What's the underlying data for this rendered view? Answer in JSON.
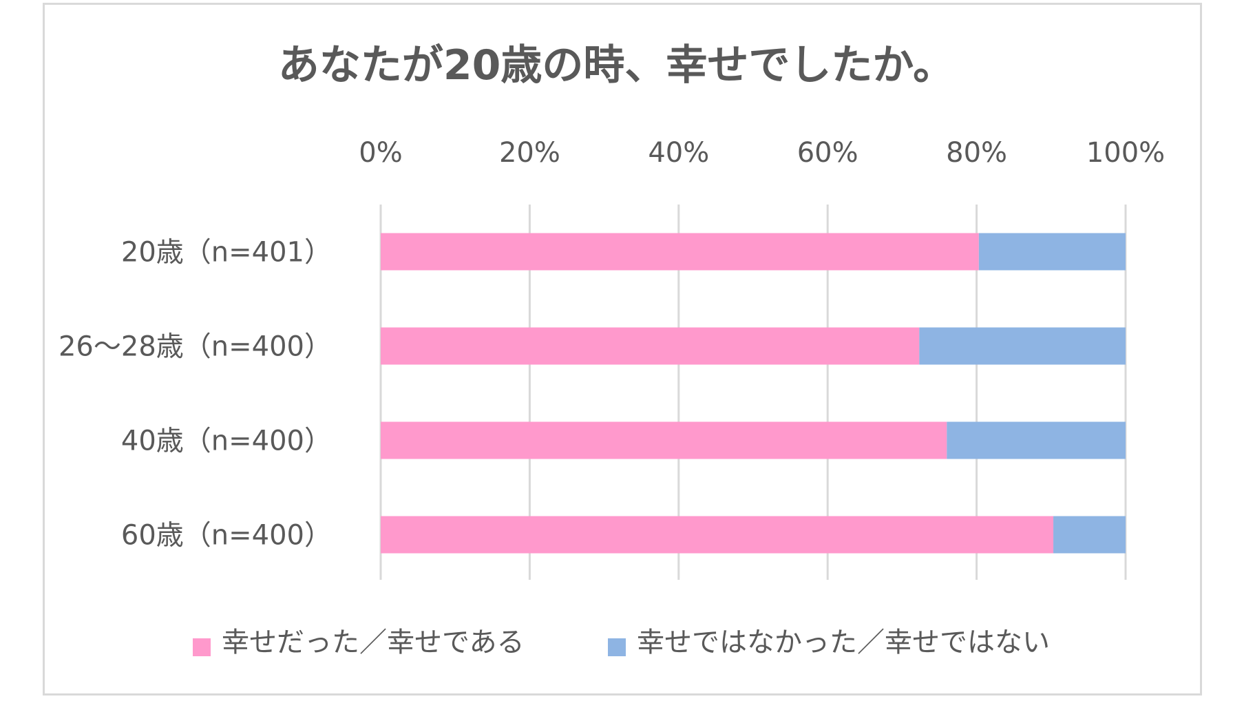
{
  "chart_data": {
    "type": "bar",
    "orientation": "horizontal",
    "stacked": true,
    "title": "あなたが20歳の時、幸せでしたか。",
    "categories": [
      "20歳（n=401）",
      "26～28歳（n=400）",
      "40歳（n=400）",
      "60歳（n=400）"
    ],
    "series": [
      {
        "name": "幸せだった／幸せである",
        "color": "#ff99cc",
        "values": [
          80.3,
          72.3,
          76.0,
          90.3
        ]
      },
      {
        "name": "幸せではなかった／幸せではない",
        "color": "#8eb4e3",
        "values": [
          19.7,
          27.7,
          24.0,
          9.7
        ]
      }
    ],
    "xlim": [
      0,
      100
    ],
    "xticks": [
      "0%",
      "20%",
      "40%",
      "60%",
      "80%",
      "100%"
    ],
    "xtick_values": [
      0,
      20,
      40,
      60,
      80,
      100
    ],
    "xlabel": "",
    "ylabel": "",
    "grid": true,
    "axis_position": "top",
    "legend_position": "bottom"
  }
}
